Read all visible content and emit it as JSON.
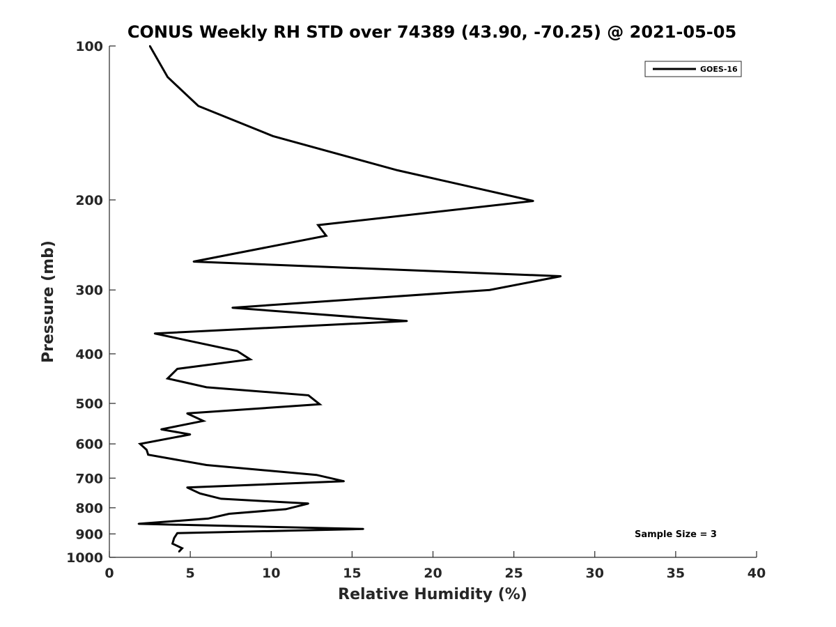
{
  "chart_data": {
    "type": "line",
    "title": "CONUS Weekly RH STD over 74389 (43.90, -70.25) @ 2021-05-05",
    "xlabel": "Relative Humidity (%)",
    "ylabel": "Pressure (mb)",
    "xlim": [
      0,
      40
    ],
    "ylim": [
      100,
      1000
    ],
    "y_scale": "log",
    "y_reversed": true,
    "xticks": [
      "0",
      "5",
      "10",
      "15",
      "20",
      "25",
      "30",
      "35",
      "40"
    ],
    "yticks": [
      "100",
      "200",
      "300",
      "400",
      "500",
      "600",
      "700",
      "800",
      "900",
      "1000"
    ],
    "grid": false,
    "legend_position": "top-right",
    "series": [
      {
        "name": "GOES-16",
        "color": "#000000",
        "x": [
          2.5,
          3.6,
          5.5,
          10.1,
          17.8,
          26.2,
          12.9,
          13.4,
          5.2,
          27.9,
          23.5,
          7.6,
          18.4,
          2.8,
          7.9,
          8.7,
          4.2,
          3.6,
          6.0,
          12.3,
          13.0,
          4.8,
          5.8,
          3.2,
          5.0,
          1.9,
          2.3,
          2.4,
          6.0,
          12.8,
          14.5,
          4.8,
          5.6,
          6.9,
          12.3,
          10.9,
          7.4,
          6.1,
          1.8,
          15.7,
          4.2,
          4.0,
          3.9,
          4.5,
          4.3
        ],
        "y": [
          100,
          115,
          131,
          150,
          175,
          201,
          224,
          235,
          264,
          282,
          300,
          325,
          345,
          365,
          395,
          410,
          428,
          447,
          465,
          482,
          502,
          523,
          541,
          562,
          575,
          600,
          616,
          630,
          660,
          690,
          710,
          730,
          750,
          768,
          785,
          805,
          822,
          840,
          860,
          880,
          897,
          917,
          940,
          960,
          975
        ]
      }
    ],
    "annotations": [
      "Sample Size = 3"
    ]
  }
}
